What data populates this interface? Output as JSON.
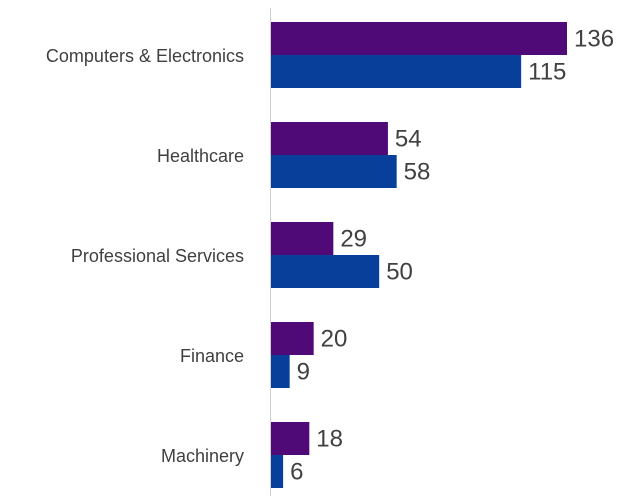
{
  "chart_data": {
    "type": "bar",
    "orientation": "horizontal",
    "categories": [
      "Computers & Electronics",
      "Healthcare",
      "Professional Services",
      "Finance",
      "Machinery"
    ],
    "series": [
      {
        "values": [
          136,
          54,
          29,
          20,
          18
        ],
        "color": "#4f0a78"
      },
      {
        "values": [
          115,
          58,
          50,
          9,
          6
        ],
        "color": "#073f9a"
      }
    ],
    "xlim": [
      0,
      140
    ],
    "grid": false,
    "legend": "none",
    "axis_color": "#d0d0d0",
    "label_color": "#404040"
  }
}
